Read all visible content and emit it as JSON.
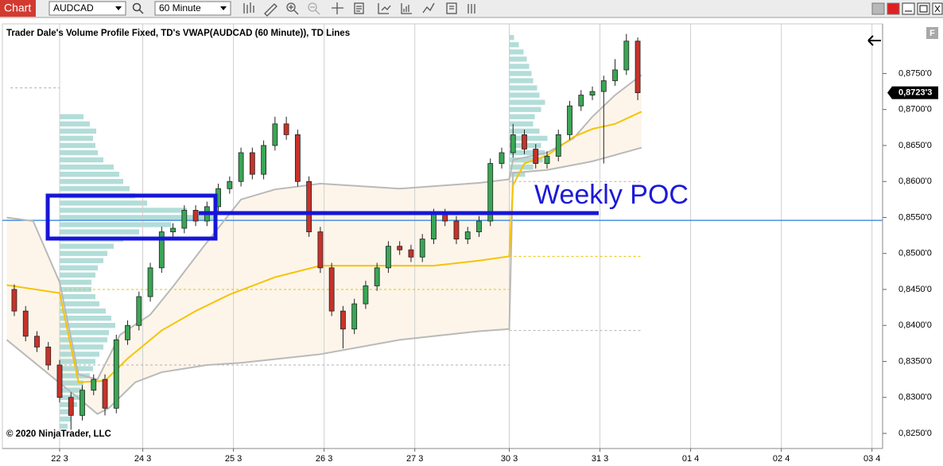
{
  "toolbar": {
    "tab": "Chart",
    "instrument": "AUDCAD",
    "interval": "60 Minute"
  },
  "chart_data": {
    "type": "candlestick",
    "title": "Trader Dale's Volume Profile Fixed, TD's VWAP(AUDCAD (60 Minute)), TD Lines",
    "annotation": "Weekly POC",
    "copyright": "© 2020 NinjaTrader, LLC",
    "panel_label": "F",
    "up_color": "#3aa655",
    "down_color": "#c8322a",
    "grid": "x",
    "xlim": [
      -15.15,
      217.8
    ],
    "ylim": [
      0.8229,
      0.8819
    ],
    "xticks": [
      {
        "value": 0,
        "label": "22 3"
      },
      {
        "value": 22,
        "label": "24 3"
      },
      {
        "value": 46,
        "label": "25 3"
      },
      {
        "value": 70,
        "label": "26 3"
      },
      {
        "value": 94,
        "label": "27 3"
      },
      {
        "value": 119,
        "label": "30 3"
      },
      {
        "value": 143,
        "label": "31 3"
      },
      {
        "value": 167,
        "label": "01 4"
      },
      {
        "value": 191,
        "label": "02 4"
      },
      {
        "value": 215,
        "label": "03 4"
      }
    ],
    "yticks": [
      {
        "value": 0.825,
        "label": "0,8250'0"
      },
      {
        "value": 0.83,
        "label": "0,8300'0"
      },
      {
        "value": 0.835,
        "label": "0,8350'0"
      },
      {
        "value": 0.84,
        "label": "0,8400'0"
      },
      {
        "value": 0.845,
        "label": "0,8450'0"
      },
      {
        "value": 0.85,
        "label": "0,8500'0"
      },
      {
        "value": 0.855,
        "label": "0,8550'0"
      },
      {
        "value": 0.86,
        "label": "0,8600'0"
      },
      {
        "value": 0.865,
        "label": "0,8650'0"
      },
      {
        "value": 0.87,
        "label": "0,8700'0"
      },
      {
        "value": 0.875,
        "label": "0,8750'0"
      }
    ],
    "last_price": {
      "value": 0.87233,
      "label": "0,8723'3"
    },
    "x": [
      -12,
      -9,
      -6,
      -3,
      0,
      3,
      6,
      9,
      12,
      15,
      18,
      21,
      24,
      27,
      30,
      33,
      36,
      39,
      42,
      45,
      48,
      51,
      54,
      57,
      60,
      63,
      66,
      69,
      72,
      75,
      78,
      81,
      84,
      87,
      90,
      93,
      96,
      99,
      102,
      105,
      108,
      111,
      114,
      117,
      120,
      123,
      126,
      129,
      132,
      135,
      138,
      141,
      144,
      147,
      150,
      153
    ],
    "open": [
      0.845,
      0.842,
      0.8385,
      0.837,
      0.8345,
      0.83,
      0.8275,
      0.831,
      0.8325,
      0.8285,
      0.838,
      0.84,
      0.844,
      0.848,
      0.853,
      0.8535,
      0.856,
      0.8545,
      0.8565,
      0.859,
      0.86,
      0.864,
      0.861,
      0.865,
      0.868,
      0.8665,
      0.86,
      0.853,
      0.848,
      0.842,
      0.8395,
      0.843,
      0.8455,
      0.848,
      0.851,
      0.8505,
      0.8495,
      0.852,
      0.8555,
      0.8545,
      0.852,
      0.853,
      0.8545,
      0.8625,
      0.864,
      0.8665,
      0.8645,
      0.8625,
      0.8635,
      0.8665,
      0.8705,
      0.872,
      0.8725,
      0.874,
      0.8755,
      0.8795
    ],
    "high": [
      0.8457,
      0.8427,
      0.8392,
      0.8377,
      0.8352,
      0.8307,
      0.8317,
      0.8332,
      0.8332,
      0.8387,
      0.8407,
      0.8447,
      0.8487,
      0.8537,
      0.8542,
      0.8567,
      0.8567,
      0.8572,
      0.8597,
      0.8607,
      0.8647,
      0.8647,
      0.8657,
      0.869,
      0.869,
      0.8672,
      0.8607,
      0.8537,
      0.8487,
      0.8427,
      0.8437,
      0.8462,
      0.8487,
      0.8517,
      0.8517,
      0.8512,
      0.8527,
      0.8562,
      0.8562,
      0.8552,
      0.8537,
      0.8552,
      0.8632,
      0.8647,
      0.868,
      0.8672,
      0.8652,
      0.8642,
      0.8672,
      0.8712,
      0.8727,
      0.8732,
      0.8747,
      0.877,
      0.8805,
      0.88
    ],
    "low": [
      0.8413,
      0.8378,
      0.8363,
      0.8338,
      0.8293,
      0.8255,
      0.8268,
      0.8303,
      0.8275,
      0.8278,
      0.8373,
      0.8393,
      0.8433,
      0.8473,
      0.8523,
      0.8528,
      0.8538,
      0.8538,
      0.8558,
      0.8583,
      0.8593,
      0.8603,
      0.8603,
      0.8643,
      0.8658,
      0.8593,
      0.8523,
      0.8473,
      0.8413,
      0.8368,
      0.8388,
      0.8423,
      0.8448,
      0.8473,
      0.8498,
      0.8488,
      0.8488,
      0.8513,
      0.8538,
      0.8513,
      0.8513,
      0.8523,
      0.8538,
      0.8618,
      0.8633,
      0.8638,
      0.8618,
      0.8618,
      0.8628,
      0.8658,
      0.8698,
      0.8713,
      0.8625,
      0.8733,
      0.8748,
      0.8713
    ],
    "close": [
      0.842,
      0.8385,
      0.837,
      0.8345,
      0.83,
      0.8275,
      0.831,
      0.8325,
      0.8285,
      0.838,
      0.84,
      0.844,
      0.848,
      0.853,
      0.8535,
      0.856,
      0.8545,
      0.8565,
      0.859,
      0.86,
      0.864,
      0.861,
      0.865,
      0.868,
      0.8665,
      0.86,
      0.853,
      0.848,
      0.842,
      0.8395,
      0.843,
      0.8455,
      0.848,
      0.851,
      0.8505,
      0.8495,
      0.852,
      0.8555,
      0.8545,
      0.852,
      0.853,
      0.8545,
      0.8625,
      0.864,
      0.8665,
      0.8645,
      0.8625,
      0.8635,
      0.8665,
      0.8705,
      0.872,
      0.8725,
      0.874,
      0.8755,
      0.8795,
      0.87233
    ],
    "overlays": [
      {
        "color": "#b9b9b9",
        "x": [
          -14,
          -7,
          0,
          5,
          10,
          16,
          24,
          30,
          38,
          48,
          57,
          69,
          90,
          111,
          119,
          120,
          129,
          136,
          141,
          147,
          154
        ],
        "values": [
          0.855,
          0.8545,
          0.846,
          0.8332,
          0.8325,
          0.8387,
          0.8415,
          0.8454,
          0.8509,
          0.8575,
          0.8589,
          0.8597,
          0.859,
          0.8598,
          0.8603,
          0.863,
          0.864,
          0.866,
          0.869,
          0.872,
          0.8748
        ]
      },
      {
        "color": "#b9b9b9",
        "x": [
          -14,
          0,
          5,
          10,
          13,
          20,
          27,
          39,
          48,
          69,
          90,
          111,
          119,
          120,
          129,
          141,
          154
        ],
        "values": [
          0.838,
          0.832,
          0.8299,
          0.8277,
          0.8285,
          0.8321,
          0.8335,
          0.8345,
          0.8348,
          0.836,
          0.838,
          0.8392,
          0.8395,
          0.8612,
          0.8616,
          0.8628,
          0.8647
        ]
      },
      {
        "color": "#f5c400",
        "x": [
          -14,
          0,
          5,
          12,
          18,
          27,
          36,
          45,
          57,
          69,
          84,
          99,
          111,
          119,
          120,
          123,
          129,
          136,
          141,
          147,
          154
        ],
        "values": [
          0.8456,
          0.8445,
          0.8321,
          0.8323,
          0.8354,
          0.8393,
          0.842,
          0.8443,
          0.8467,
          0.8483,
          0.8483,
          0.8483,
          0.849,
          0.8496,
          0.8595,
          0.8625,
          0.8636,
          0.8662,
          0.8673,
          0.868,
          0.8697
        ]
      }
    ],
    "band_fill": "#fdf5ea",
    "profiles": [
      {
        "base": 0,
        "color": "#9fd4d0",
        "prices": [
          0.826,
          0.827,
          0.828,
          0.829,
          0.83,
          0.831,
          0.832,
          0.833,
          0.834,
          0.835,
          0.836,
          0.837,
          0.838,
          0.839,
          0.84,
          0.841,
          0.842,
          0.843,
          0.844,
          0.845,
          0.846,
          0.847,
          0.848,
          0.849,
          0.85,
          0.851,
          0.852,
          0.853,
          0.854,
          0.855,
          0.856,
          0.857,
          0.858,
          0.859,
          0.86,
          0.861,
          0.862,
          0.863,
          0.864,
          0.865,
          0.866,
          0.867,
          0.868,
          0.869
        ],
        "volumes": [
          10,
          14,
          18,
          22,
          25,
          28,
          30,
          38,
          42,
          45,
          50,
          55,
          60,
          62,
          70,
          65,
          58,
          50,
          45,
          40,
          40,
          45,
          48,
          55,
          60,
          68,
          80,
          100,
          140,
          195,
          160,
          110,
          95,
          88,
          80,
          75,
          68,
          55,
          48,
          45,
          42,
          46,
          38,
          30
        ]
      },
      {
        "base": 119,
        "color": "#9fd4d0",
        "prices": [
          0.861,
          0.862,
          0.863,
          0.864,
          0.865,
          0.866,
          0.867,
          0.868,
          0.869,
          0.87,
          0.871,
          0.872,
          0.873,
          0.874,
          0.875,
          0.876,
          0.877,
          0.878,
          0.879,
          0.88
        ],
        "volumes": [
          20,
          30,
          42,
          45,
          40,
          48,
          38,
          30,
          32,
          40,
          45,
          38,
          35,
          30,
          28,
          25,
          22,
          18,
          12,
          6
        ]
      }
    ],
    "levels": [
      {
        "value": 0.873,
        "from": -13,
        "to": 0,
        "color": "#b0b0b0"
      },
      {
        "value": 0.845,
        "from": 0,
        "to": 119,
        "color": "#e6c200"
      },
      {
        "value": 0.8345,
        "from": 0,
        "to": 119,
        "color": "#b0b0b0"
      },
      {
        "value": 0.86,
        "from": 119,
        "to": 154,
        "color": "#b0b0b0"
      },
      {
        "value": 0.8496,
        "from": 119,
        "to": 154,
        "color": "#e6c200"
      },
      {
        "value": 0.8393,
        "from": 119,
        "to": 154,
        "color": "#b0b0b0"
      }
    ],
    "hline": {
      "value": 0.8546,
      "color": "#4a90e2"
    }
  }
}
